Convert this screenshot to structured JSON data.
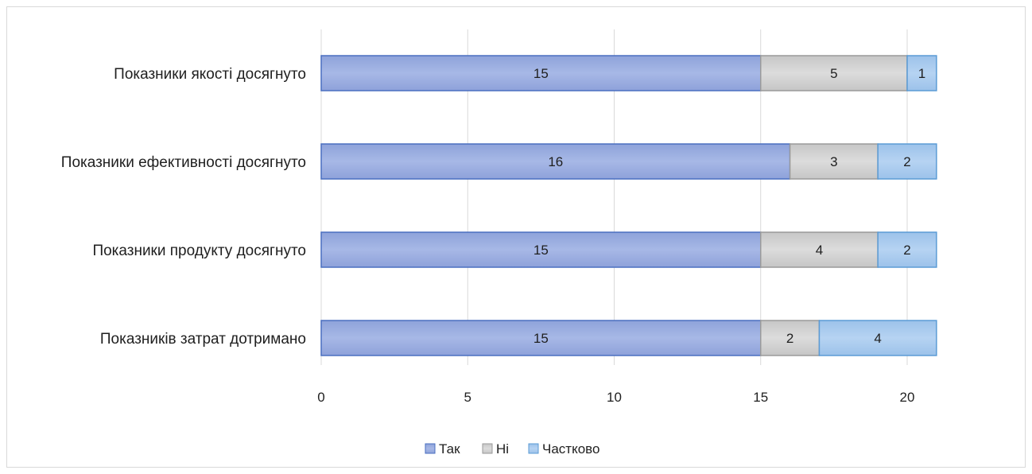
{
  "chart_data": {
    "type": "bar",
    "orientation": "horizontal",
    "stacked": true,
    "categories": [
      "Показники якості досягнуто",
      "Показники ефективності досягнуто",
      "Показники продукту досягнуто",
      "Показників затрат дотримано"
    ],
    "series": [
      {
        "name": "Так",
        "values": [
          15,
          16,
          15,
          15
        ],
        "color": "#9db0e0"
      },
      {
        "name": "Ні",
        "values": [
          5,
          3,
          4,
          2
        ],
        "color": "#d0d0d0"
      },
      {
        "name": "Частково",
        "values": [
          1,
          2,
          2,
          4
        ],
        "color": "#a8cbee"
      }
    ],
    "xlim": [
      0,
      21
    ],
    "xticks": [
      0,
      5,
      10,
      15,
      20
    ],
    "grid": true,
    "legend_position": "bottom",
    "data_labels": true
  }
}
